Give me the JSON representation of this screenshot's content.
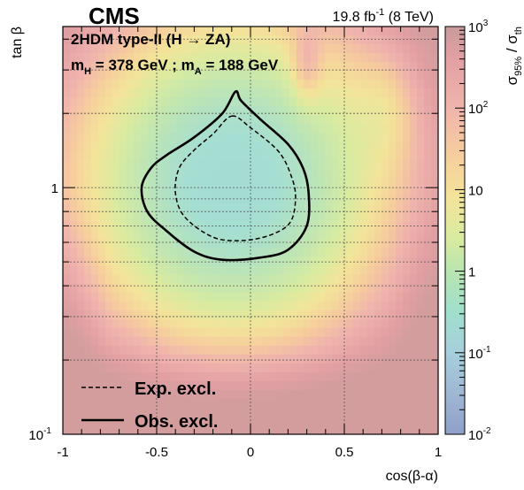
{
  "chart_data": {
    "type": "heatmap",
    "experiment": "CMS",
    "lumi_label": "19.8 fb",
    "lumi_sup": "-1",
    "lumi_energy": " (8 TeV)",
    "model_label": "2HDM type-II (H → ZA)",
    "mass_label": {
      "mH_prefix": "m",
      "mH_sub": "H",
      "mH_value": " = 378 GeV ; m",
      "mA_sub": "A",
      "mA_value": " = 188 GeV"
    },
    "xlabel": "cos(β-α)",
    "ylabel": "tan β",
    "xlim": [
      -1,
      1
    ],
    "ylim": [
      0.1,
      4.5
    ],
    "y_scale": "log",
    "x_ticks": [
      {
        "value": -1,
        "label": "-1"
      },
      {
        "value": -0.5,
        "label": "-0.5"
      },
      {
        "value": 0,
        "label": "0"
      },
      {
        "value": 0.5,
        "label": "0.5"
      },
      {
        "value": 1,
        "label": "1"
      }
    ],
    "y_ticks": [
      {
        "value": 0.1,
        "base": "10",
        "exp": "-1"
      },
      {
        "value": 1,
        "base": "1",
        "exp": ""
      }
    ],
    "z_label": {
      "num": "σ",
      "num_sub": "95%",
      "sep": " / ",
      "den": "σ",
      "den_sub": "th"
    },
    "z_scale": "log",
    "z_range": [
      0.01,
      1000
    ],
    "z_ticks": [
      {
        "value": 1000,
        "base": "10",
        "exp": "3"
      },
      {
        "value": 100,
        "base": "10",
        "exp": "2"
      },
      {
        "value": 10,
        "base": "10",
        "exp": ""
      },
      {
        "value": 1,
        "base": "1",
        "exp": ""
      },
      {
        "value": 0.1,
        "base": "10",
        "exp": "-1"
      },
      {
        "value": 0.01,
        "base": "10",
        "exp": "-2"
      }
    ],
    "grid": true,
    "legend_position": "bottom-left",
    "legend": [
      {
        "label": "Exp. excl.",
        "style": "dashed"
      },
      {
        "label": "Obs. excl.",
        "style": "solid"
      }
    ],
    "expected_contour": [
      [
        -0.1,
        1.95
      ],
      [
        0.0,
        1.75
      ],
      [
        0.15,
        1.4
      ],
      [
        0.22,
        1.1
      ],
      [
        0.24,
        0.9
      ],
      [
        0.21,
        0.72
      ],
      [
        0.1,
        0.64
      ],
      [
        -0.05,
        0.61
      ],
      [
        -0.2,
        0.63
      ],
      [
        -0.35,
        0.76
      ],
      [
        -0.4,
        0.95
      ],
      [
        -0.38,
        1.2
      ],
      [
        -0.3,
        1.42
      ],
      [
        -0.2,
        1.65
      ],
      [
        -0.1,
        1.95
      ]
    ],
    "observed_contour": [
      [
        -0.08,
        2.45
      ],
      [
        -0.05,
        2.25
      ],
      [
        0.05,
        1.9
      ],
      [
        0.2,
        1.5
      ],
      [
        0.28,
        1.2
      ],
      [
        0.31,
        0.95
      ],
      [
        0.3,
        0.7
      ],
      [
        0.2,
        0.56
      ],
      [
        0.05,
        0.52
      ],
      [
        -0.15,
        0.51
      ],
      [
        -0.3,
        0.55
      ],
      [
        -0.45,
        0.67
      ],
      [
        -0.55,
        0.8
      ],
      [
        -0.58,
        1.0
      ],
      [
        -0.53,
        1.2
      ],
      [
        -0.45,
        1.35
      ],
      [
        -0.3,
        1.6
      ],
      [
        -0.15,
        2.0
      ],
      [
        -0.08,
        2.45
      ]
    ],
    "heatmap_summary": {
      "minimum_near": {
        "cos_beta_alpha": -0.1,
        "tan_beta": 1.05,
        "ratio": 0.5
      },
      "description_levels": "ratio below 1 inside central region, rising to above 100 near tan beta 0.1 and at large |cos(beta-alpha)|"
    }
  }
}
